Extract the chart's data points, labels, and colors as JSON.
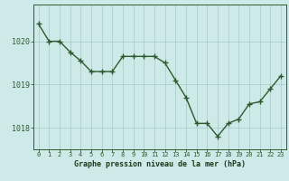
{
  "x": [
    0,
    1,
    2,
    3,
    4,
    5,
    6,
    7,
    8,
    9,
    10,
    11,
    12,
    13,
    14,
    15,
    16,
    17,
    18,
    19,
    20,
    21,
    22,
    23
  ],
  "y": [
    1020.4,
    1020.0,
    1020.0,
    1019.75,
    1019.55,
    1019.3,
    1019.3,
    1019.3,
    1019.65,
    1019.65,
    1019.65,
    1019.65,
    1019.5,
    1019.1,
    1018.7,
    1018.1,
    1018.1,
    1017.8,
    1018.1,
    1018.2,
    1018.55,
    1018.6,
    1018.9,
    1019.2
  ],
  "line_color": "#2d5a2d",
  "marker": "+",
  "marker_size": 4,
  "linewidth": 1.0,
  "bg_color": "#ceeae8",
  "grid_color": "#aad0cc",
  "axis_color": "#2d5a2d",
  "tick_color": "#2d5a2d",
  "xlabel": "Graphe pression niveau de la mer (hPa)",
  "xlabel_fontsize": 6.0,
  "xlabel_color": "#1a3a1a",
  "yticks": [
    1018,
    1019,
    1020
  ],
  "ylim": [
    1017.5,
    1020.85
  ],
  "xlim": [
    -0.5,
    23.5
  ],
  "xticks": [
    0,
    1,
    2,
    3,
    4,
    5,
    6,
    7,
    8,
    9,
    10,
    11,
    12,
    13,
    14,
    15,
    16,
    17,
    18,
    19,
    20,
    21,
    22,
    23
  ],
  "xtick_fontsize": 5.0,
  "ytick_fontsize": 6.0
}
